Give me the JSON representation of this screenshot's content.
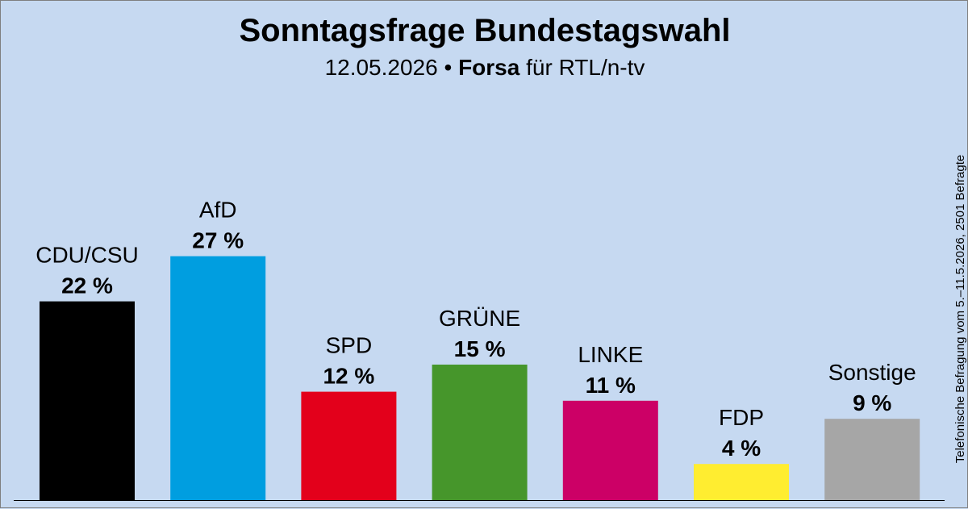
{
  "header": {
    "title": "Sonntagsfrage Bundestagswahl",
    "date": "12.05.2026",
    "separator": "•",
    "institute": "Forsa",
    "client": "für RTL/n-tv"
  },
  "side_note": "Telefonische Befragung vom 5.–11.5.2026, 2501 Befragte",
  "chart_data": {
    "type": "bar",
    "title": "Sonntagsfrage Bundestagswahl",
    "subtitle": "12.05.2026 • Forsa für RTL/n-tv",
    "xlabel": "",
    "ylabel": "",
    "unit": "%",
    "grid": false,
    "ylim": [
      0,
      30
    ],
    "categories": [
      "CDU/CSU",
      "AfD",
      "SPD",
      "GRÜNE",
      "LINKE",
      "FDP",
      "Sonstige"
    ],
    "values": [
      22,
      27,
      12,
      15,
      11,
      4,
      9
    ],
    "value_labels": [
      "22 %",
      "27 %",
      "12 %",
      "15 %",
      "11 %",
      "4 %",
      "9 %"
    ],
    "colors": [
      "#000000",
      "#009ee0",
      "#e3001b",
      "#46962b",
      "#cc0066",
      "#ffed30",
      "#a6a6a6"
    ]
  }
}
